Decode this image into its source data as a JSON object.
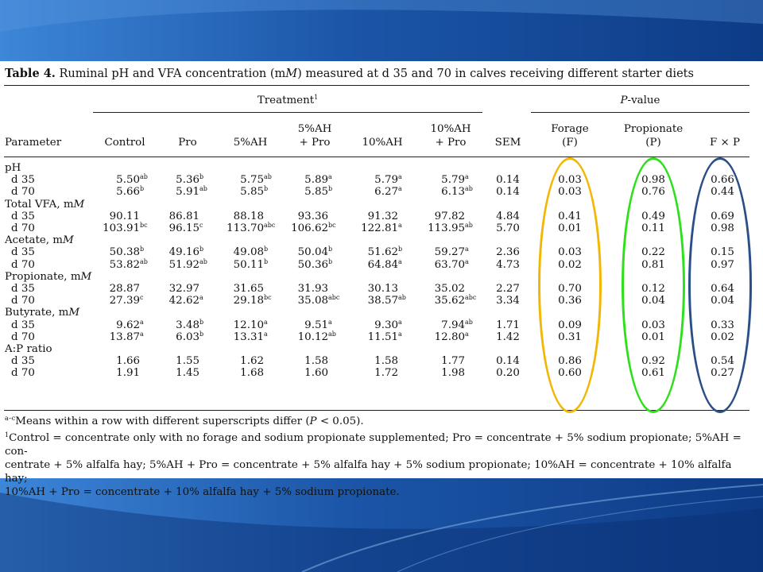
{
  "caption": {
    "label": "Table 4.",
    "text": "Ruminal pH and VFA concentration (mM) measured at d 35 and 70 in calves receiving different starter diets"
  },
  "headers": {
    "treatment_group": "Treatment",
    "treatment_fn": "1",
    "pvalue_group": "P-value",
    "parameter": "Parameter",
    "control": "Control",
    "pro": "Pro",
    "ah5": "5%AH",
    "ah5pro_1": "5%AH",
    "ah5pro_2": "+ Pro",
    "ah10": "10%AH",
    "ah10pro_1": "10%AH",
    "ah10pro_2": "+ Pro",
    "sem": "SEM",
    "forage_1": "Forage",
    "forage_2": "(F)",
    "prop_1": "Propionate",
    "prop_2": "(P)",
    "fxp": "F × P"
  },
  "rows": [
    {
      "type": "group",
      "label": "pH"
    },
    {
      "type": "data",
      "label": "d 35",
      "v": [
        [
          "5.50",
          "ab"
        ],
        [
          "5.36",
          "b"
        ],
        [
          "5.75",
          "ab"
        ],
        [
          "5.89",
          "a"
        ],
        [
          "5.79",
          "a"
        ],
        [
          "5.79",
          "a"
        ]
      ],
      "sem": "0.14",
      "f": "0.03",
      "p": "0.98",
      "fp": "0.66"
    },
    {
      "type": "data",
      "label": "d 70",
      "v": [
        [
          "5.66",
          "b"
        ],
        [
          "5.91",
          "ab"
        ],
        [
          "5.85",
          "b"
        ],
        [
          "5.85",
          "b"
        ],
        [
          "6.27",
          "a"
        ],
        [
          "6.13",
          "ab"
        ]
      ],
      "sem": "0.14",
      "f": "0.03",
      "p": "0.76",
      "fp": "0.44"
    },
    {
      "type": "group",
      "label": "Total VFA, mM"
    },
    {
      "type": "data",
      "label": "d 35",
      "v": [
        [
          "90.11",
          ""
        ],
        [
          "86.81",
          ""
        ],
        [
          "88.18",
          ""
        ],
        [
          "93.36",
          ""
        ],
        [
          "91.32",
          ""
        ],
        [
          "97.82",
          ""
        ]
      ],
      "sem": "4.84",
      "f": "0.41",
      "p": "0.49",
      "fp": "0.69"
    },
    {
      "type": "data",
      "label": "d 70",
      "v": [
        [
          "103.91",
          "bc"
        ],
        [
          "96.15",
          "c"
        ],
        [
          "113.70",
          "abc"
        ],
        [
          "106.62",
          "bc"
        ],
        [
          "122.81",
          "a"
        ],
        [
          "113.95",
          "ab"
        ]
      ],
      "sem": "5.70",
      "f": "0.01",
      "p": "0.11",
      "fp": "0.98"
    },
    {
      "type": "group",
      "label": "Acetate, mM"
    },
    {
      "type": "data",
      "label": "d 35",
      "v": [
        [
          "50.38",
          "b"
        ],
        [
          "49.16",
          "b"
        ],
        [
          "49.08",
          "b"
        ],
        [
          "50.04",
          "b"
        ],
        [
          "51.62",
          "b"
        ],
        [
          "59.27",
          "a"
        ]
      ],
      "sem": "2.36",
      "f": "0.03",
      "p": "0.22",
      "fp": "0.15"
    },
    {
      "type": "data",
      "label": "d 70",
      "v": [
        [
          "53.82",
          "ab"
        ],
        [
          "51.92",
          "ab"
        ],
        [
          "50.11",
          "b"
        ],
        [
          "50.36",
          "b"
        ],
        [
          "64.84",
          "a"
        ],
        [
          "63.70",
          "a"
        ]
      ],
      "sem": "4.73",
      "f": "0.02",
      "p": "0.81",
      "fp": "0.97"
    },
    {
      "type": "group",
      "label": "Propionate, mM"
    },
    {
      "type": "data",
      "label": "d 35",
      "v": [
        [
          "28.87",
          ""
        ],
        [
          "32.97",
          ""
        ],
        [
          "31.65",
          ""
        ],
        [
          "31.93",
          ""
        ],
        [
          "30.13",
          ""
        ],
        [
          "35.02",
          ""
        ]
      ],
      "sem": "2.27",
      "f": "0.70",
      "p": "0.12",
      "fp": "0.64"
    },
    {
      "type": "data",
      "label": "d 70",
      "v": [
        [
          "27.39",
          "c"
        ],
        [
          "42.62",
          "a"
        ],
        [
          "29.18",
          "bc"
        ],
        [
          "35.08",
          "abc"
        ],
        [
          "38.57",
          "ab"
        ],
        [
          "35.62",
          "abc"
        ]
      ],
      "sem": "3.34",
      "f": "0.36",
      "p": "0.04",
      "fp": "0.04"
    },
    {
      "type": "group",
      "label": "Butyrate, mM"
    },
    {
      "type": "data",
      "label": "d 35",
      "v": [
        [
          "9.62",
          "a"
        ],
        [
          "3.48",
          "b"
        ],
        [
          "12.10",
          "a"
        ],
        [
          "9.51",
          "a"
        ],
        [
          "9.30",
          "a"
        ],
        [
          "7.94",
          "ab"
        ]
      ],
      "sem": "1.71",
      "f": "0.09",
      "p": "0.03",
      "fp": "0.33"
    },
    {
      "type": "data",
      "label": "d 70",
      "v": [
        [
          "13.87",
          "a"
        ],
        [
          "6.03",
          "b"
        ],
        [
          "13.31",
          "a"
        ],
        [
          "10.12",
          "ab"
        ],
        [
          "11.51",
          "a"
        ],
        [
          "12.80",
          "a"
        ]
      ],
      "sem": "1.42",
      "f": "0.31",
      "p": "0.01",
      "fp": "0.02"
    },
    {
      "type": "group",
      "label": "A:P ratio"
    },
    {
      "type": "data",
      "label": "d 35",
      "v": [
        [
          "1.66",
          ""
        ],
        [
          "1.55",
          ""
        ],
        [
          "1.62",
          ""
        ],
        [
          "1.58",
          ""
        ],
        [
          "1.58",
          ""
        ],
        [
          "1.77",
          ""
        ]
      ],
      "sem": "0.14",
      "f": "0.86",
      "p": "0.92",
      "fp": "0.54"
    },
    {
      "type": "data",
      "label": "d 70",
      "v": [
        [
          "1.91",
          ""
        ],
        [
          "1.45",
          ""
        ],
        [
          "1.68",
          ""
        ],
        [
          "1.60",
          ""
        ],
        [
          "1.72",
          ""
        ],
        [
          "1.98",
          ""
        ]
      ],
      "sem": "0.20",
      "f": "0.60",
      "p": "0.61",
      "fp": "0.27"
    }
  ],
  "footnotes": {
    "fn_a_mark": "a–c",
    "fn_a_text": "Means within a row with different superscripts differ (P < 0.05).",
    "fn_1_mark": "1",
    "fn_1_line1": "Control = concentrate only with no forage and sodium propionate supplemented; Pro = concentrate + 5% sodium propionate; 5%AH = con-",
    "fn_1_line2": "centrate + 5% alfalfa hay; 5%AH + Pro = concentrate + 5% alfalfa hay + 5% sodium propionate; 10%AH = concentrate + 10% alfalfa hay;",
    "fn_1_line3": "10%AH + Pro = concentrate + 10% alfalfa hay + 5% sodium propionate."
  },
  "highlights": {
    "forage_color": "#f2b705",
    "propionate_color": "#2ee01a",
    "interaction_color": "#2a4f86"
  },
  "colors": {
    "slide_bg_dark": "#0f3f8c",
    "slide_bg_light": "#3d86d8"
  }
}
